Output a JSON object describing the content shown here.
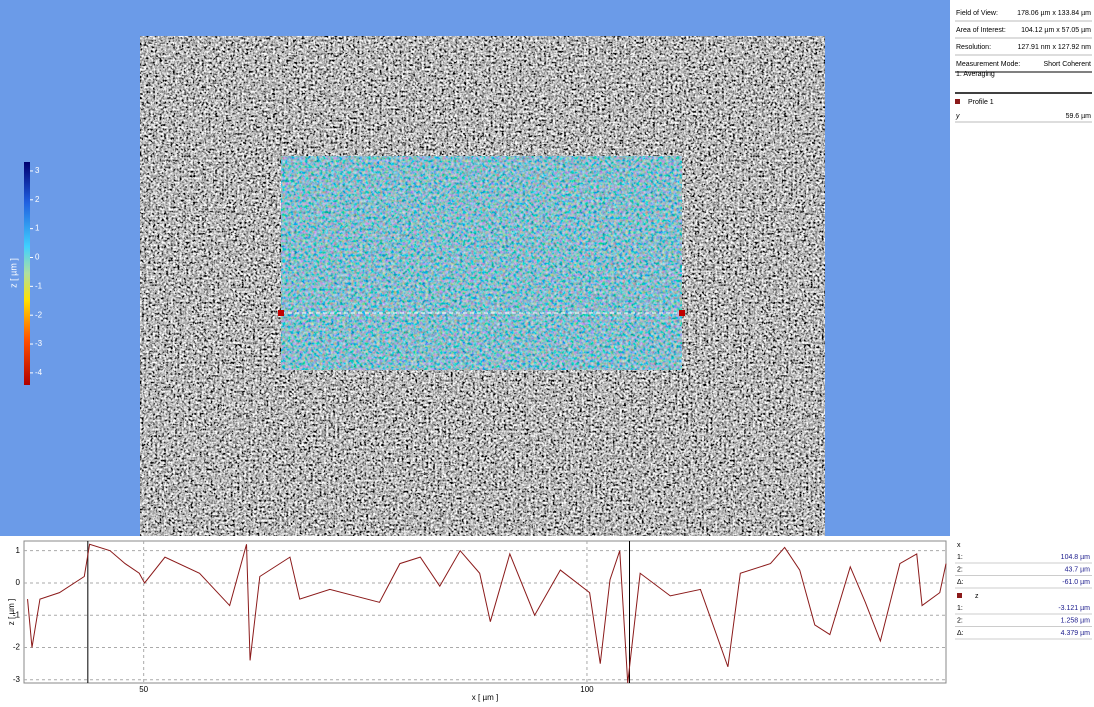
{
  "info": {
    "rows": [
      {
        "label": "Field of View:",
        "value": "178.06 µm x 133.84 µm"
      },
      {
        "label": "Area of Interest:",
        "value": "104.12 µm x 57.05 µm"
      },
      {
        "label": "Resolution:",
        "value": "127.91 nm x 127.92 nm"
      },
      {
        "label": "Measurement Mode:",
        "value": "Short Coherent"
      }
    ],
    "filter": "1. Averaging",
    "profile": "Profile 1",
    "profile_row": {
      "label": "y",
      "value": "59.6 µm"
    }
  },
  "colorbar": {
    "label": "z [ µm ]",
    "ticks": [
      3,
      2,
      1,
      0,
      -1,
      -2,
      -3,
      -4
    ],
    "lim": [
      -4.42,
      3.31
    ]
  },
  "readout": {
    "x": {
      "header": "x",
      "rows": [
        {
          "label": "1:",
          "value": "104.8 µm"
        },
        {
          "label": "2:",
          "value": "43.7 µm"
        },
        {
          "label": "Δ:",
          "value": "-61.0 µm"
        }
      ]
    },
    "z": {
      "header": "z",
      "rows": [
        {
          "label": "1:",
          "value": "-3.121 µm"
        },
        {
          "label": "2:",
          "value": "1.258 µm"
        },
        {
          "label": "Δ:",
          "value": "4.379 µm"
        }
      ]
    }
  },
  "chart_data": {
    "type": "line",
    "x_label": "x [ µm ]",
    "y_label": "z [ µm ]",
    "color": "#8b1a1a",
    "x": [
      36.9,
      37.4,
      38.3,
      40.5,
      43.3,
      43.9,
      46.2,
      47.9,
      49.5,
      50.1,
      52.4,
      56.3,
      59.7,
      61.6,
      62.0,
      63.1,
      66.5,
      67.6,
      71.0,
      76.6,
      78.9,
      81.2,
      83.4,
      85.7,
      87.9,
      89.1,
      91.3,
      94.1,
      97.0,
      100.3,
      101.5,
      102.6,
      103.7,
      104.6,
      106.0,
      109.4,
      112.8,
      115.9,
      117.3,
      120.7,
      122.3,
      124.0,
      125.7,
      127.4,
      129.7,
      131.4,
      133.1,
      135.3,
      137.2,
      137.8,
      139.8,
      140.5
    ],
    "values": [
      -0.5,
      -2.0,
      -0.5,
      -0.3,
      0.2,
      1.2,
      1.0,
      0.6,
      0.3,
      0.0,
      0.8,
      0.3,
      -0.7,
      1.2,
      -2.4,
      0.2,
      0.8,
      -0.5,
      -0.2,
      -0.6,
      0.6,
      0.8,
      -0.1,
      1.0,
      0.3,
      -1.2,
      0.9,
      -1.0,
      0.4,
      -0.3,
      -2.5,
      0.1,
      1.0,
      -3.1,
      0.3,
      -0.4,
      -0.2,
      -2.6,
      0.3,
      0.6,
      1.1,
      0.4,
      -1.3,
      -1.6,
      0.5,
      -0.6,
      -1.8,
      0.6,
      0.9,
      -0.7,
      -0.3,
      0.6
    ],
    "cursors": [
      43.7,
      104.8
    ],
    "xlim": [
      36.5,
      140.5
    ],
    "ylim": [
      -3.1,
      1.3
    ],
    "xticks": [
      50,
      100
    ],
    "yticks": [
      1,
      0,
      -1,
      -2,
      -3
    ],
    "grid": true
  }
}
